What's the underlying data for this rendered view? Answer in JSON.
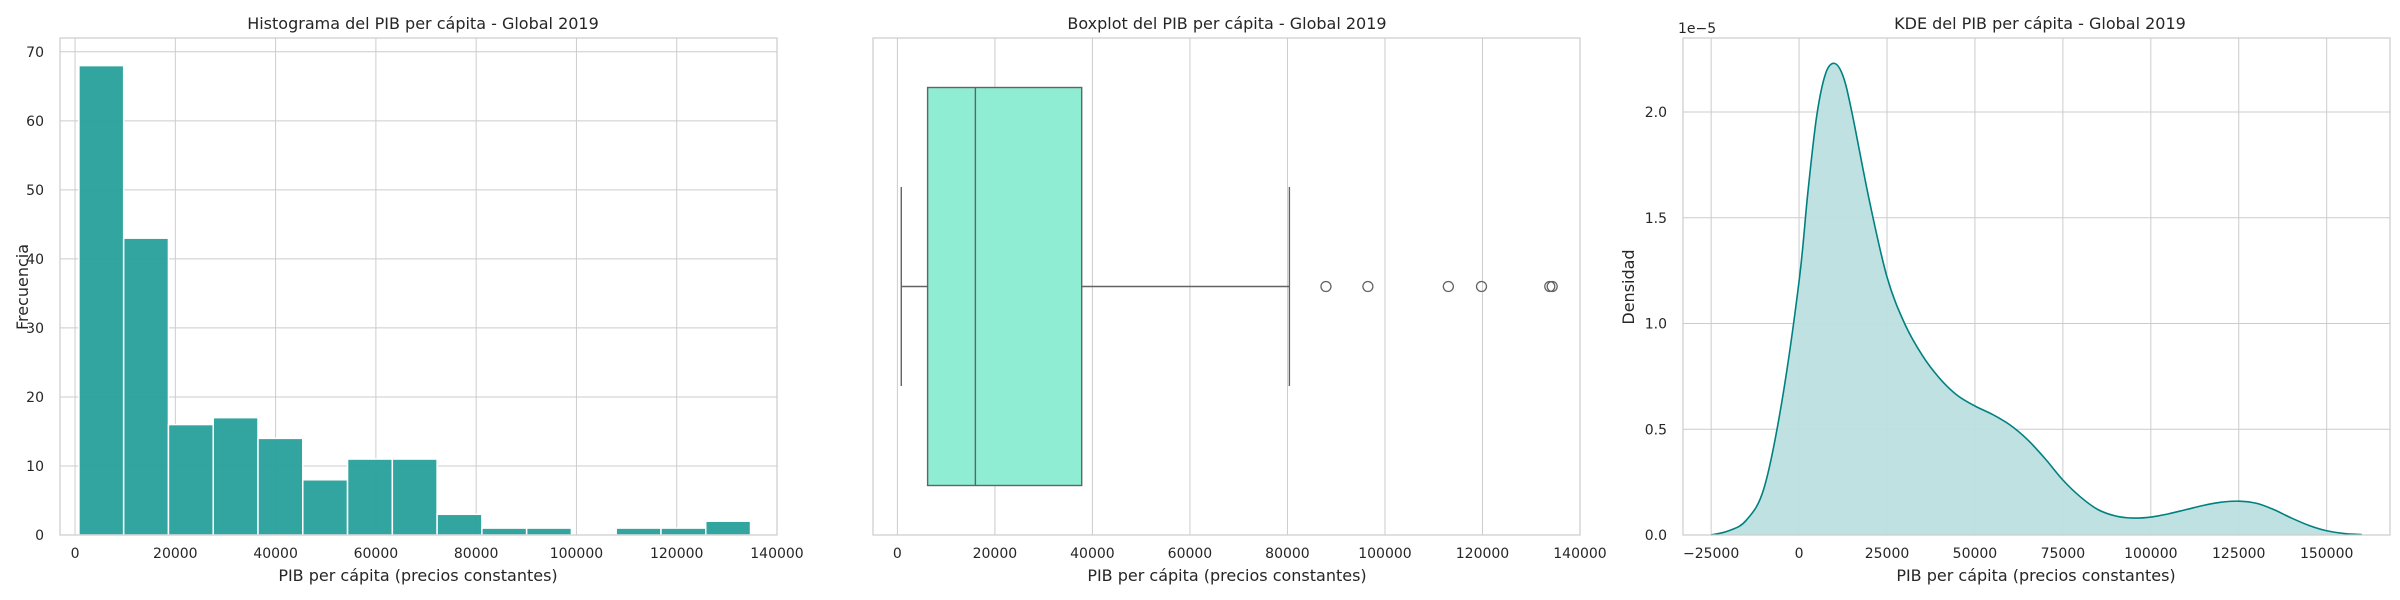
{
  "chart_data": [
    {
      "type": "bar",
      "subtype": "histogram",
      "title": "Histograma del PIB per cápita - Global 2019",
      "xlabel": "PIB per cápita (precios constantes)",
      "ylabel": "Frecuencia",
      "xlim": [
        -3000,
        140000
      ],
      "ylim": [
        0,
        72
      ],
      "xticks": [
        0,
        20000,
        40000,
        60000,
        80000,
        100000,
        120000,
        140000
      ],
      "xtick_labels": [
        "0",
        "20000",
        "40000",
        "60000",
        "80000",
        "100000",
        "120000",
        "140000"
      ],
      "yticks": [
        0,
        10,
        20,
        30,
        40,
        50,
        60,
        70
      ],
      "ytick_labels": [
        "0",
        "10",
        "20",
        "30",
        "40",
        "50",
        "60",
        "70"
      ],
      "bin_edges": [
        770,
        9700,
        18630,
        27560,
        36490,
        45420,
        54350,
        63280,
        72210,
        81140,
        90070,
        99000,
        107930,
        116860,
        125790,
        134720
      ],
      "values": [
        68,
        43,
        16,
        17,
        14,
        8,
        11,
        11,
        3,
        1,
        1,
        0,
        1,
        1,
        2
      ],
      "color": "#28a09b",
      "grid": true
    },
    {
      "type": "boxplot",
      "title": "Boxplot del PIB per cápita - Global 2019",
      "xlabel": "PIB per cápita (precios constantes)",
      "xlim": [
        -5000,
        140000
      ],
      "xticks": [
        0,
        20000,
        40000,
        60000,
        80000,
        100000,
        120000,
        140000
      ],
      "xtick_labels": [
        "0",
        "20000",
        "40000",
        "60000",
        "80000",
        "100000",
        "120000",
        "140000"
      ],
      "whisker_low": 800,
      "q1": 6200,
      "median": 16000,
      "q3": 37800,
      "whisker_high": 80400,
      "outliers": [
        87900,
        96500,
        113000,
        119800,
        133800,
        134300
      ],
      "color": "#8eedd2",
      "grid": true
    },
    {
      "type": "area",
      "subtype": "kde",
      "title": "KDE del PIB per cápita - Global 2019",
      "xlabel": "PIB per cápita (precios constantes)",
      "ylabel": "Densidad",
      "scale_label": "1e−5",
      "xlim": [
        -33000,
        168000
      ],
      "ylim": [
        0,
        2.35
      ],
      "xticks": [
        -25000,
        0,
        25000,
        50000,
        75000,
        100000,
        125000,
        150000
      ],
      "xtick_labels": [
        "−25000",
        "0",
        "25000",
        "50000",
        "75000",
        "100000",
        "125000",
        "150000"
      ],
      "yticks": [
        0,
        0.5,
        1.0,
        1.5,
        2.0
      ],
      "ytick_labels": [
        "0.0",
        "0.5",
        "1.0",
        "1.5",
        "2.0"
      ],
      "x": [
        -25000,
        -20000,
        -15000,
        -10000,
        -5000,
        0,
        2500,
        5000,
        7500,
        10000,
        12500,
        15000,
        20000,
        25000,
        30000,
        35000,
        40000,
        45000,
        50000,
        55000,
        60000,
        65000,
        70000,
        75000,
        80000,
        85000,
        90000,
        95000,
        100000,
        105000,
        110000,
        115000,
        120000,
        125000,
        130000,
        135000,
        140000,
        145000,
        150000,
        155000,
        160000
      ],
      "y": [
        0.0,
        0.02,
        0.07,
        0.22,
        0.62,
        1.2,
        1.62,
        1.98,
        2.18,
        2.23,
        2.17,
        2.0,
        1.58,
        1.22,
        1.0,
        0.85,
        0.74,
        0.66,
        0.61,
        0.57,
        0.52,
        0.45,
        0.36,
        0.26,
        0.18,
        0.12,
        0.09,
        0.08,
        0.085,
        0.1,
        0.12,
        0.14,
        0.155,
        0.16,
        0.15,
        0.12,
        0.08,
        0.045,
        0.02,
        0.007,
        0.002
      ],
      "color": "#008080",
      "fill_color": "#bcdfdf",
      "grid": true
    }
  ]
}
